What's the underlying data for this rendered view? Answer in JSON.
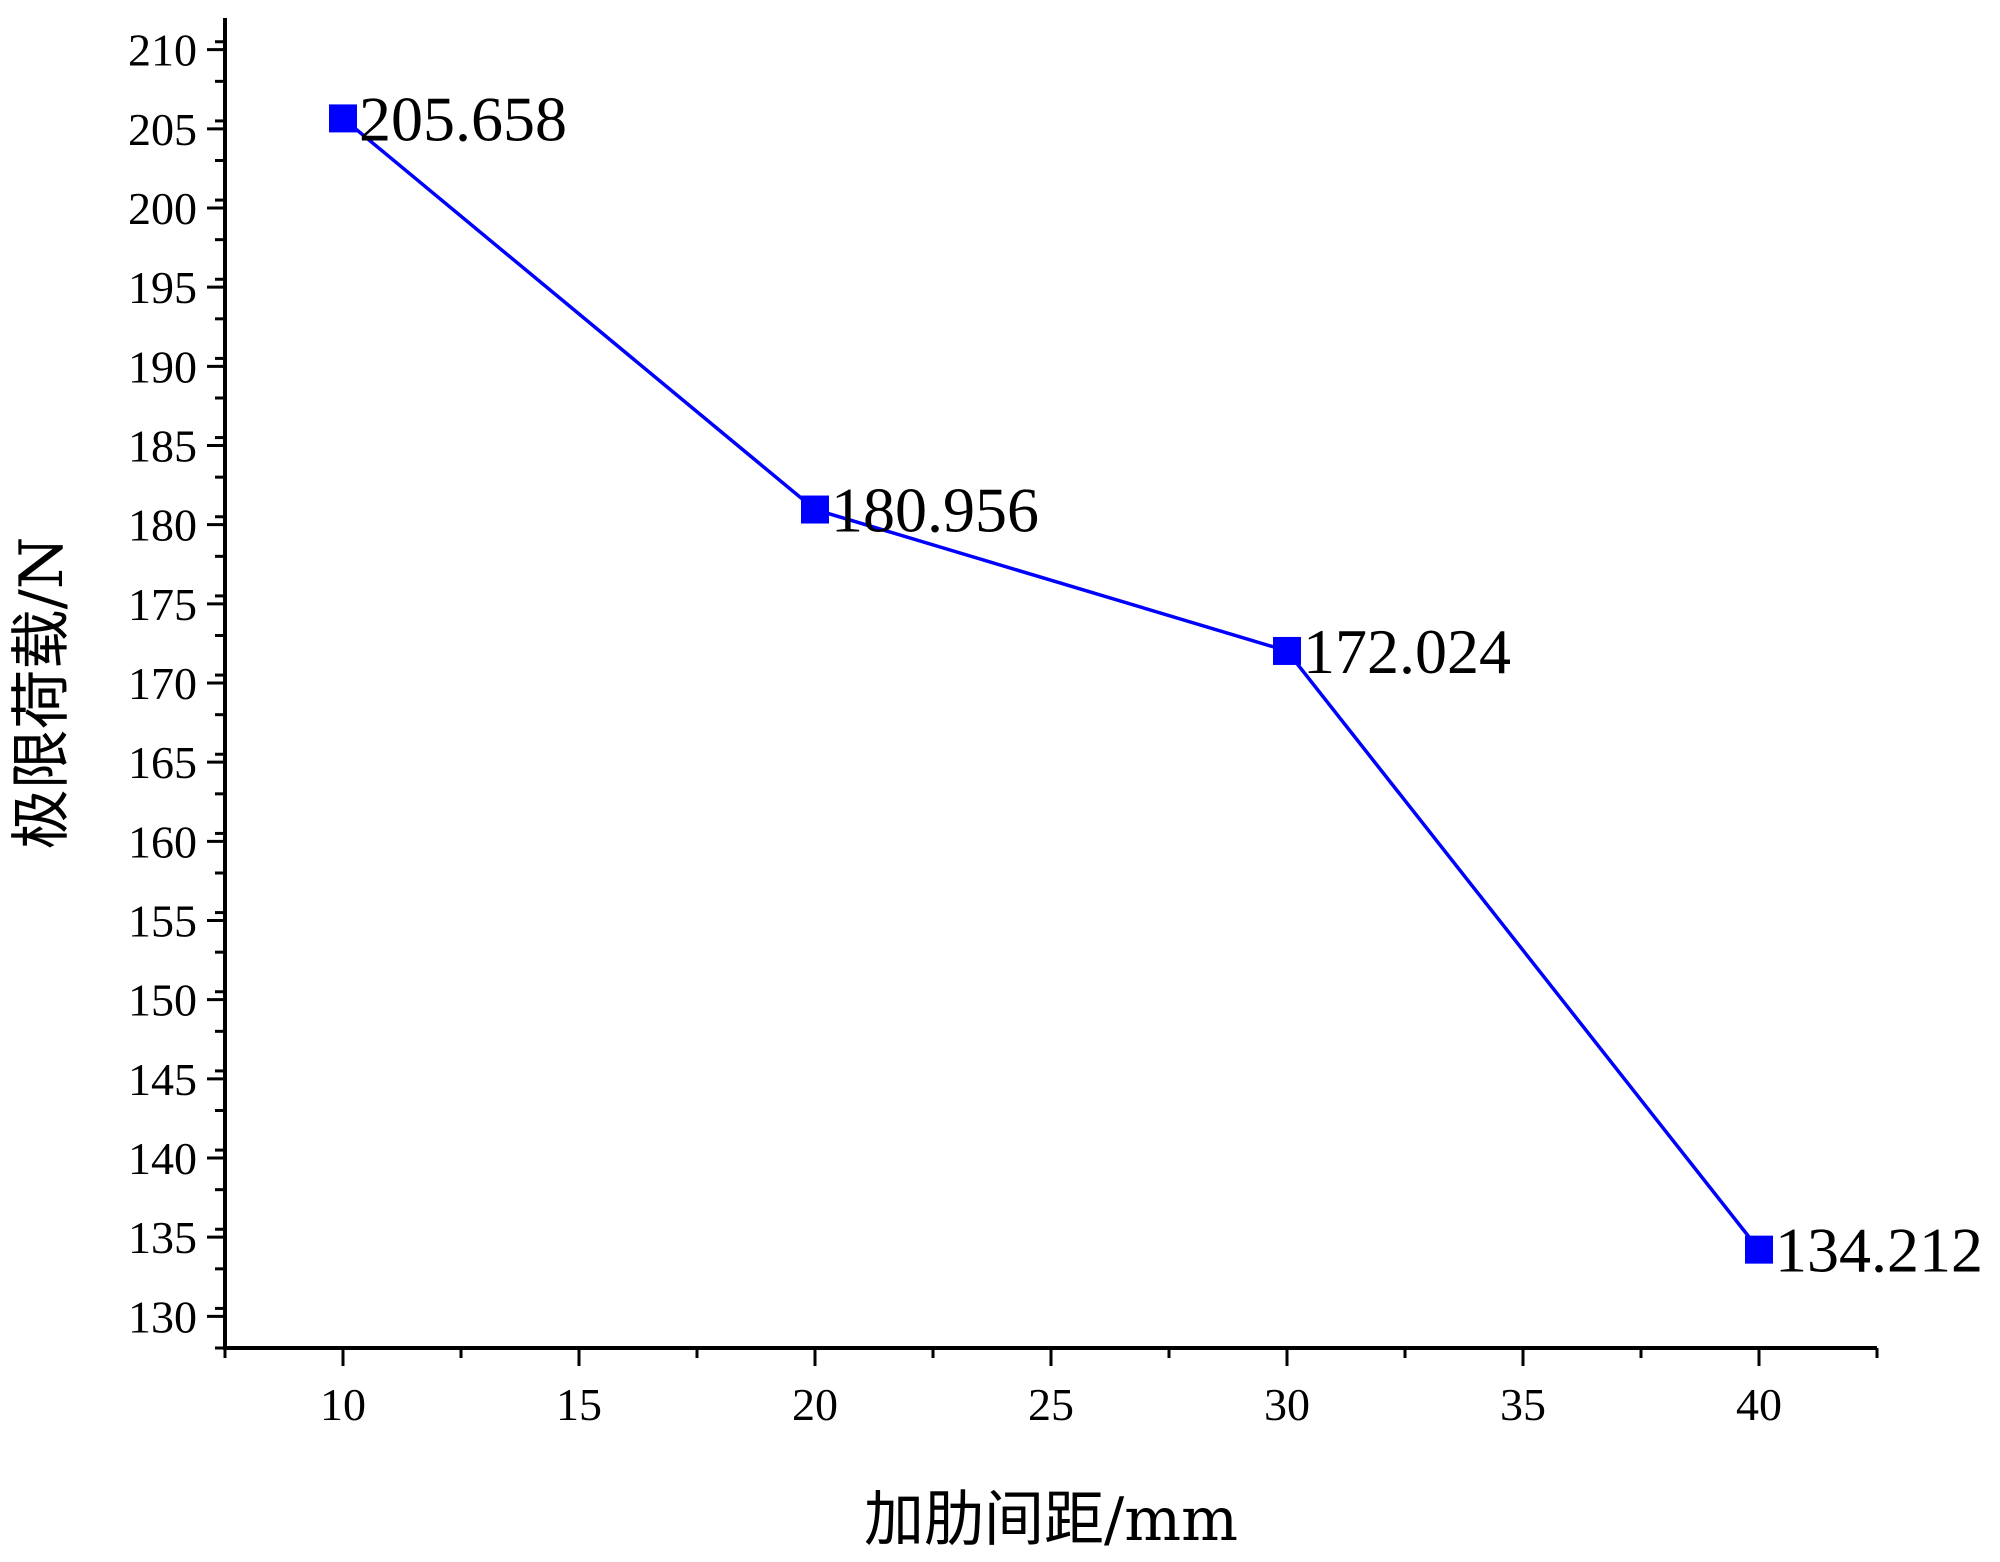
{
  "chart_data": {
    "type": "line",
    "title": "",
    "xlabel": "加肋间距/mm",
    "ylabel": "极限荷载/N",
    "x": [
      10,
      20,
      30,
      40
    ],
    "series": [
      {
        "values": [
          205.658,
          180.956,
          172.024,
          134.212
        ],
        "data_labels": [
          "205.658",
          "180.956",
          "172.024",
          "134.212"
        ],
        "color": "#0000ff",
        "marker": "square"
      }
    ],
    "xlim": [
      7.5,
      42.5
    ],
    "ylim": [
      128,
      212
    ],
    "x_ticks": [
      10,
      15,
      20,
      25,
      30,
      35,
      40
    ],
    "y_ticks": [
      130,
      135,
      140,
      145,
      150,
      155,
      160,
      165,
      170,
      175,
      180,
      185,
      190,
      195,
      200,
      205,
      210
    ],
    "x_tick_labels": [
      "10",
      "15",
      "20",
      "25",
      "30",
      "35",
      "40"
    ],
    "y_tick_labels": [
      "130",
      "135",
      "140",
      "145",
      "150",
      "155",
      "160",
      "165",
      "170",
      "175",
      "180",
      "185",
      "190",
      "195",
      "200",
      "205",
      "210"
    ],
    "grid": false,
    "legend": "none"
  }
}
